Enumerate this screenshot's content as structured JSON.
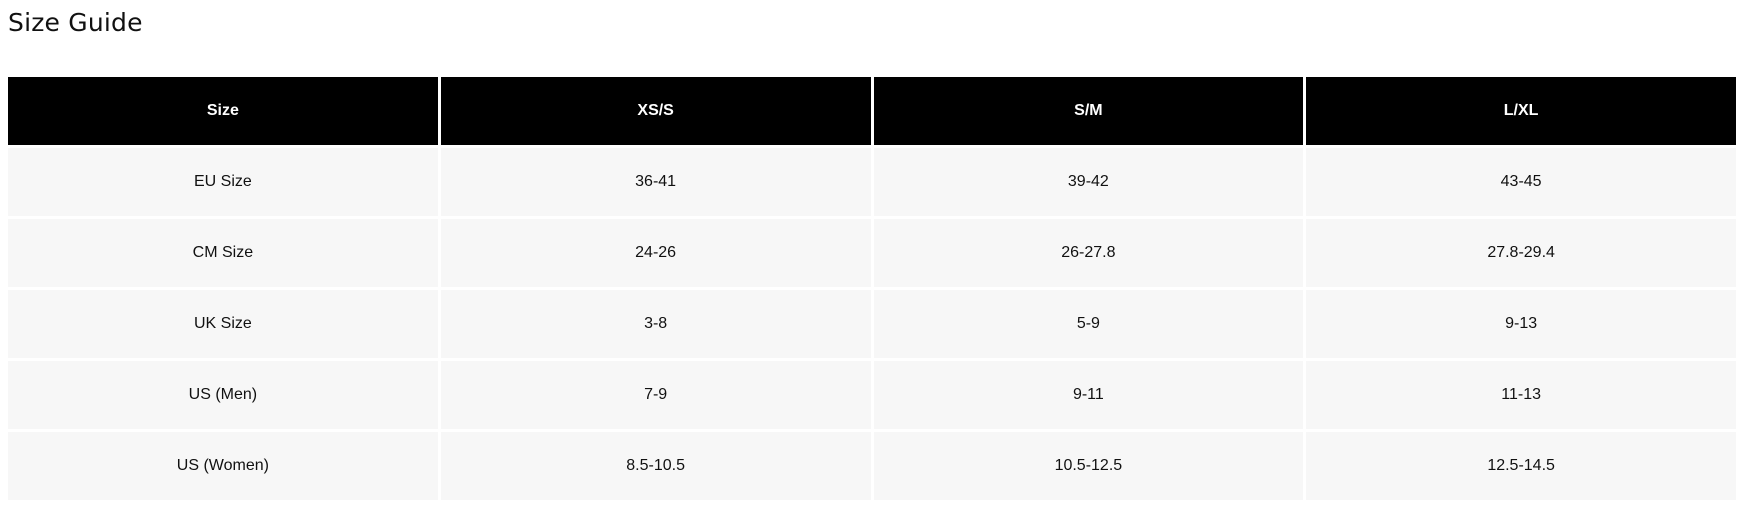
{
  "title": "Size Guide",
  "table": {
    "headers": [
      "Size",
      "XS/S",
      "S/M",
      "L/XL"
    ],
    "rows": [
      [
        "EU Size",
        "36-41",
        "39-42",
        "43-45"
      ],
      [
        "CM Size",
        "24-26",
        "26-27.8",
        "27.8-29.4"
      ],
      [
        "UK Size",
        "3-8",
        "5-9",
        "9-13"
      ],
      [
        "US (Men)",
        "7-9",
        "9-11",
        "11-13"
      ],
      [
        "US (Women)",
        "8.5-10.5",
        "10.5-12.5",
        "12.5-14.5"
      ]
    ]
  },
  "colors": {
    "header_bg": "#000000",
    "header_text": "#ffffff",
    "cell_bg": "#f7f7f7"
  }
}
